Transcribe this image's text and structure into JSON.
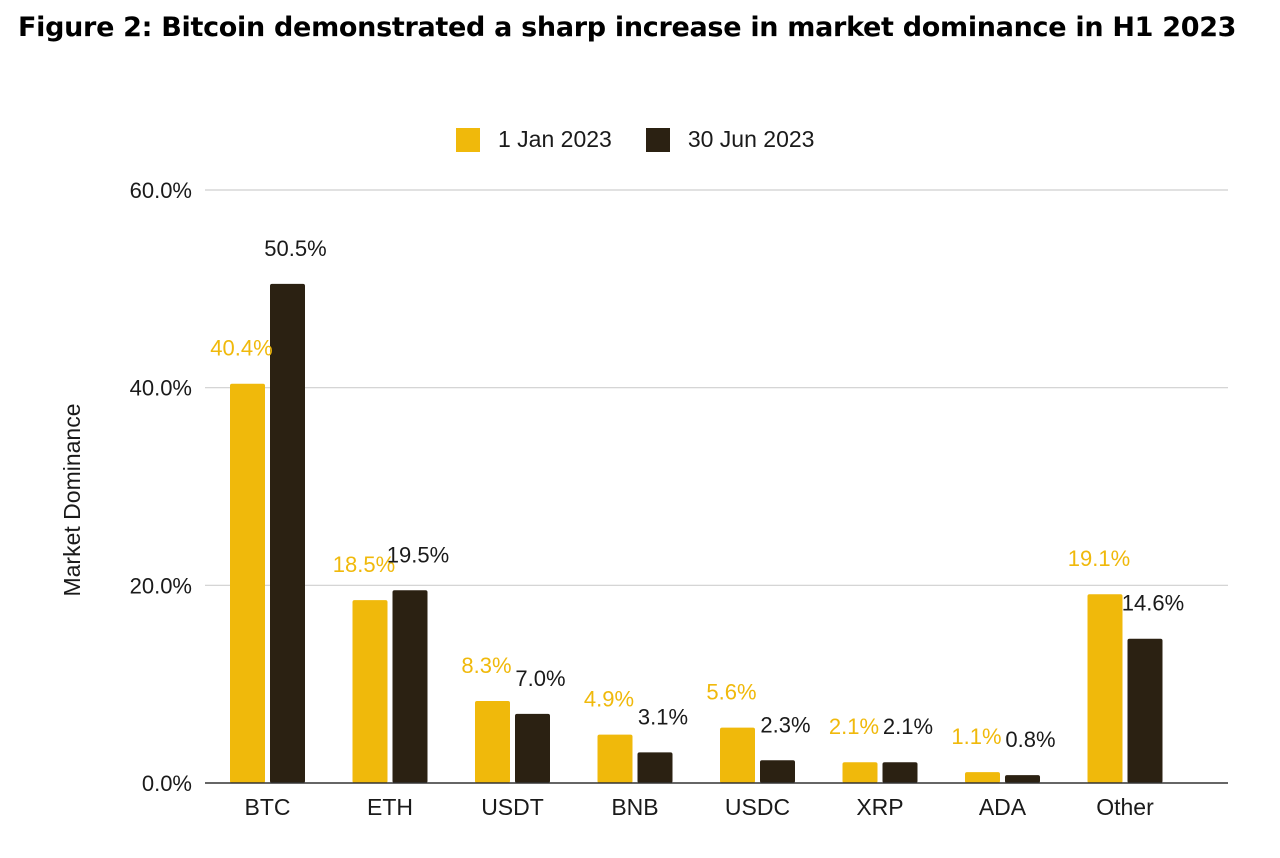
{
  "figure_title": "Figure 2: Bitcoin demonstrated a sharp increase in market dominance in H1 2023",
  "colors": {
    "series_1": "#f0b90b",
    "series_2": "#2b2112",
    "label_1": "#f0b90b",
    "label_2": "#1a1a1a",
    "grid": "#cfcfcf",
    "axis": "#333333"
  },
  "chart_data": {
    "type": "bar",
    "title": "Figure 2: Bitcoin demonstrated a sharp increase in market dominance in H1 2023",
    "xlabel": "",
    "ylabel": "Market Dominance",
    "ylim": [
      0,
      60
    ],
    "yticks": [
      "0.0%",
      "20.0%",
      "40.0%",
      "60.0%"
    ],
    "ytick_values": [
      0,
      20,
      40,
      60
    ],
    "grid": true,
    "legend_position": "top-center",
    "categories": [
      "BTC",
      "ETH",
      "USDT",
      "BNB",
      "USDC",
      "XRP",
      "ADA",
      "Other"
    ],
    "series": [
      {
        "name": "1 Jan 2023",
        "values": [
          40.4,
          18.5,
          8.3,
          4.9,
          5.6,
          2.1,
          1.1,
          19.1
        ],
        "labels": [
          "40.4%",
          "18.5%",
          "8.3%",
          "4.9%",
          "5.6%",
          "2.1%",
          "1.1%",
          "19.1%"
        ]
      },
      {
        "name": "30 Jun 2023",
        "values": [
          50.5,
          19.5,
          7.0,
          3.1,
          2.3,
          2.1,
          0.8,
          14.6
        ],
        "labels": [
          "50.5%",
          "19.5%",
          "7.0%",
          "3.1%",
          "2.3%",
          "2.1%",
          "0.8%",
          "14.6%"
        ]
      }
    ]
  }
}
